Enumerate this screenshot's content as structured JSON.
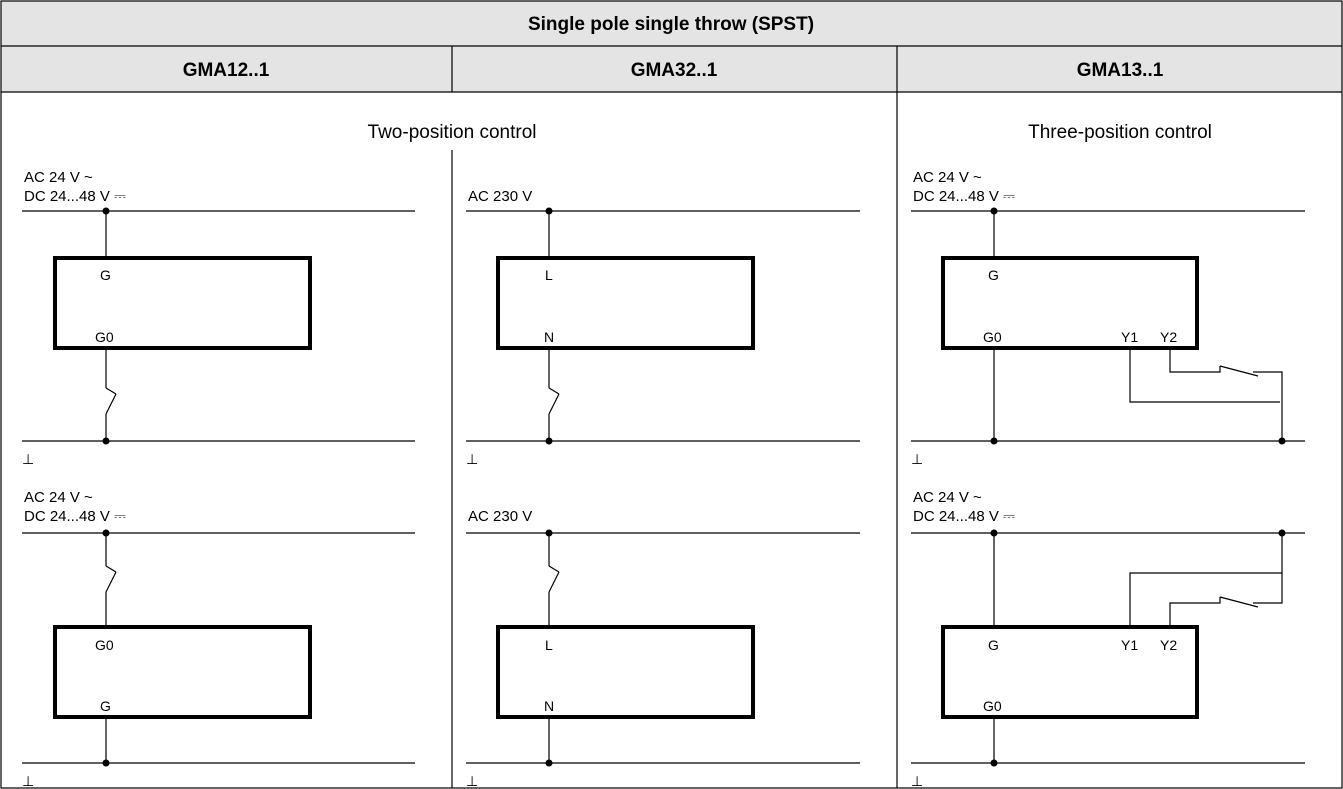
{
  "title": "Single pole single throw (SPST)",
  "columns": [
    "GMA12..1",
    "GMA32..1",
    "GMA13..1"
  ],
  "modes": {
    "two_position": "Two-position control",
    "three_position": "Three-position control"
  },
  "supply": {
    "ac24": "AC 24 V ~",
    "dc24_48": "DC 24...48 V ⎓",
    "ac230": "AC 230 V"
  },
  "terminals": {
    "g": "G",
    "g0": "G0",
    "l": "L",
    "n": "N",
    "y1": "Y1",
    "y2": "Y2"
  },
  "ground_symbol": "⊥"
}
